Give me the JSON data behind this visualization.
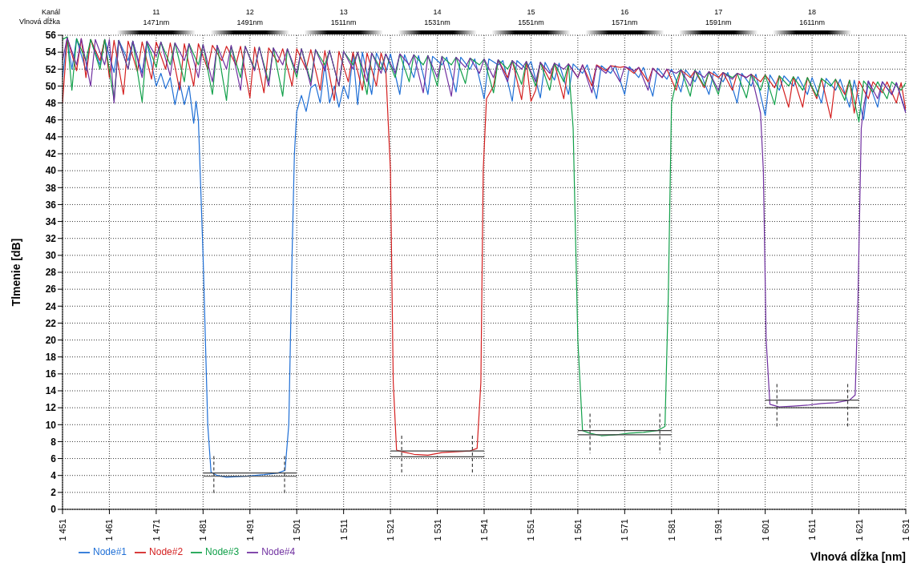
{
  "chart_data": {
    "type": "line",
    "xlabel": "Vlnová dĺžka [nm]",
    "ylabel": "Tlmenie [dB]",
    "annotations": [
      "Kanál",
      "Vlnová dĺžka",
      "11",
      "1471nm",
      "12",
      "1491nm",
      "13",
      "1511nm",
      "14",
      "1531nm",
      "15",
      "1551nm",
      "16",
      "1571nm",
      "17",
      "1591nm",
      "18",
      "1611nm"
    ],
    "xlim": [
      1451,
      1631
    ],
    "xticks": [
      {
        "value": 1451,
        "label": "1 451"
      },
      {
        "value": 1461,
        "label": "1 461"
      },
      {
        "value": 1471,
        "label": "1 471"
      },
      {
        "value": 1481,
        "label": "1 481"
      },
      {
        "value": 1491,
        "label": "1 491"
      },
      {
        "value": 1501,
        "label": "1 501"
      },
      {
        "value": 1511,
        "label": "1 511"
      },
      {
        "value": 1521,
        "label": "1 521"
      },
      {
        "value": 1531,
        "label": "1 531"
      },
      {
        "value": 1541,
        "label": "1 541"
      },
      {
        "value": 1551,
        "label": "1 551"
      },
      {
        "value": 1561,
        "label": "1 561"
      },
      {
        "value": 1571,
        "label": "1 571"
      },
      {
        "value": 1581,
        "label": "1 581"
      },
      {
        "value": 1591,
        "label": "1 591"
      },
      {
        "value": 1601,
        "label": "1 601"
      },
      {
        "value": 1611,
        "label": "1 611"
      },
      {
        "value": 1621,
        "label": "1 621"
      },
      {
        "value": 1631,
        "label": "1 631"
      }
    ],
    "ylim": [
      0,
      56
    ],
    "yticks": [
      0,
      2,
      4,
      6,
      8,
      10,
      12,
      14,
      16,
      18,
      20,
      22,
      24,
      26,
      28,
      30,
      32,
      34,
      36,
      38,
      40,
      42,
      44,
      46,
      48,
      50,
      52,
      54,
      56
    ],
    "grid": true,
    "legend": "bottom left",
    "marker": "none",
    "line_style": "solid",
    "series": [
      {
        "name": "Node#1",
        "color": "#1f6fd6",
        "x": [
          1451,
          1452,
          1453,
          1454,
          1456,
          1457,
          1459,
          1460,
          1462,
          1463,
          1465,
          1466,
          1468,
          1469,
          1471,
          1472,
          1473,
          1474,
          1475,
          1476,
          1477,
          1478,
          1479,
          1479.5,
          1480,
          1481,
          1482,
          1482.7,
          1484,
          1486,
          1490,
          1494,
          1497,
          1498.5,
          1499.3,
          1500,
          1500.5,
          1501,
          1502,
          1503,
          1504,
          1505,
          1506,
          1507,
          1508,
          1509,
          1510,
          1511,
          1512,
          1513,
          1514,
          1515,
          1517,
          1518,
          1520,
          1521,
          1523,
          1524,
          1526,
          1527,
          1529,
          1530,
          1532,
          1533,
          1535,
          1536,
          1538,
          1539,
          1541,
          1542,
          1544,
          1545,
          1547,
          1548,
          1550,
          1551,
          1553,
          1554,
          1556,
          1557,
          1559,
          1560,
          1562,
          1563,
          1565,
          1566,
          1568,
          1569,
          1571,
          1572,
          1574,
          1575,
          1577,
          1578,
          1580,
          1581,
          1583,
          1584,
          1586,
          1587,
          1589,
          1590,
          1592,
          1593,
          1595,
          1596,
          1598,
          1599,
          1601,
          1602,
          1604,
          1605,
          1607,
          1608,
          1610,
          1611,
          1613,
          1614,
          1616,
          1617,
          1619,
          1620,
          1622,
          1623,
          1625,
          1626,
          1628,
          1629,
          1631
        ],
        "values": [
          51,
          55.7,
          52,
          55.6,
          51.8,
          55.5,
          52.5,
          55.5,
          51.6,
          55.4,
          53,
          55.3,
          51.5,
          55.2,
          50,
          51.5,
          49.7,
          51,
          47.8,
          50.5,
          47.8,
          50,
          45.6,
          48.2,
          46,
          30,
          10,
          4.4,
          4,
          3.8,
          3.9,
          4.1,
          4.3,
          4.6,
          10,
          30,
          42,
          47,
          48.9,
          47,
          49.8,
          50.2,
          48,
          52.6,
          48,
          50,
          47.5,
          50,
          48.5,
          53.8,
          47.8,
          54,
          49,
          53.9,
          51.5,
          53.8,
          49,
          53.7,
          51,
          53.6,
          49,
          53.5,
          52.5,
          53.4,
          49.3,
          53.4,
          52,
          53.2,
          48.5,
          53.2,
          52.5,
          53,
          48.2,
          53,
          52,
          52.9,
          48.6,
          52.8,
          50.7,
          52.7,
          49,
          52.6,
          51.5,
          52.5,
          48.5,
          52.4,
          51.5,
          52.4,
          49,
          52.3,
          51,
          52.2,
          48.8,
          52.1,
          50.8,
          52,
          49.3,
          51.9,
          50.5,
          51.8,
          49,
          51.7,
          50.5,
          51.6,
          48,
          51.5,
          50,
          51.4,
          46.5,
          51.3,
          49.5,
          51.2,
          50,
          51.1,
          49,
          51,
          48,
          50.9,
          49.5,
          50.8,
          47.5,
          50.7,
          46,
          50.6,
          47.5,
          50.5,
          49,
          50.4,
          47
        ]
      },
      {
        "name": "Node#2",
        "color": "#d42020",
        "x": [
          1451,
          1452,
          1454,
          1455,
          1456,
          1457,
          1459,
          1460,
          1461,
          1462,
          1464,
          1465,
          1467,
          1468,
          1470,
          1471,
          1473,
          1474,
          1476,
          1477,
          1479,
          1480,
          1482,
          1483,
          1485,
          1486,
          1488,
          1489,
          1491,
          1492,
          1494,
          1495,
          1497,
          1498,
          1500,
          1501,
          1503,
          1504,
          1506,
          1507,
          1509,
          1510,
          1512,
          1513,
          1515,
          1516,
          1518,
          1519,
          1520,
          1521,
          1521.6,
          1522.3,
          1523.5,
          1526,
          1529,
          1532,
          1535,
          1538,
          1539.5,
          1540.3,
          1540.8,
          1541.5,
          1543,
          1544,
          1546,
          1547,
          1549,
          1550,
          1551,
          1552,
          1553,
          1555,
          1556,
          1558,
          1559,
          1561,
          1562,
          1564,
          1565,
          1567,
          1568,
          1570,
          1571,
          1573,
          1574,
          1576,
          1577,
          1579,
          1580,
          1582,
          1583,
          1585,
          1586,
          1588,
          1589,
          1591,
          1592,
          1594,
          1595,
          1597,
          1598,
          1600,
          1601,
          1603,
          1604,
          1606,
          1607,
          1609,
          1610,
          1612,
          1613,
          1615,
          1616,
          1618,
          1619,
          1620,
          1621,
          1623,
          1624,
          1626,
          1627,
          1629,
          1630,
          1631
        ],
        "values": [
          48,
          55.7,
          51.8,
          55.6,
          51,
          55.5,
          53,
          55.5,
          51,
          55.4,
          49,
          55.3,
          51.7,
          55.2,
          50.8,
          55.2,
          52,
          55.1,
          49.5,
          55,
          50,
          55,
          52,
          54.8,
          53,
          54.7,
          52.5,
          54.7,
          48.6,
          54.6,
          49.2,
          54.5,
          52.8,
          54.4,
          50,
          54.4,
          52,
          54.3,
          49.5,
          54.2,
          48.3,
          54.1,
          50.5,
          54,
          49.5,
          53.9,
          50,
          53.9,
          52,
          40,
          15,
          7,
          6.8,
          6.5,
          6.4,
          6.7,
          6.8,
          6.9,
          7.2,
          15,
          40,
          48.5,
          50,
          53.1,
          51,
          53,
          48.4,
          52.9,
          48.2,
          49.5,
          52.8,
          50.7,
          52.7,
          48.5,
          52.6,
          51,
          52.5,
          50,
          52.5,
          51.8,
          52.4,
          52.2,
          52.3,
          51.5,
          52.2,
          50.5,
          52.1,
          51,
          52,
          49.5,
          51.9,
          51,
          51.8,
          49.8,
          51.7,
          51,
          51.6,
          49.5,
          51.5,
          51,
          51.4,
          50.5,
          51.3,
          49.8,
          51.2,
          47.5,
          51.1,
          47.5,
          51,
          48.5,
          50.9,
          46.2,
          50.8,
          49,
          50.7,
          46.8,
          50.6,
          48.5,
          50.5,
          49.2,
          50.5,
          48,
          50.4,
          47.2
        ]
      },
      {
        "name": "Node#3",
        "color": "#12a04a",
        "x": [
          1451,
          1452,
          1453,
          1454,
          1456,
          1457,
          1459,
          1460,
          1462,
          1463,
          1465,
          1466,
          1468,
          1469,
          1471,
          1472,
          1474,
          1475,
          1477,
          1478,
          1480,
          1481,
          1483,
          1484,
          1486,
          1487,
          1489,
          1490,
          1492,
          1493,
          1495,
          1496,
          1498,
          1499,
          1501,
          1502,
          1504,
          1505,
          1507,
          1508,
          1510,
          1511,
          1513,
          1514,
          1516,
          1517,
          1519,
          1520,
          1522,
          1523,
          1525,
          1526,
          1528,
          1529,
          1531,
          1532,
          1534,
          1535,
          1537,
          1538,
          1540,
          1541,
          1543,
          1544,
          1546,
          1547,
          1549,
          1550,
          1552,
          1553,
          1555,
          1556,
          1558,
          1559,
          1560,
          1561,
          1562,
          1563.5,
          1566,
          1569,
          1572,
          1575,
          1578,
          1579.6,
          1580.3,
          1581,
          1582,
          1583,
          1585,
          1586,
          1588,
          1589,
          1591,
          1592,
          1594,
          1595,
          1597,
          1598,
          1600,
          1601,
          1603,
          1604,
          1606,
          1607,
          1609,
          1610,
          1612,
          1613,
          1615,
          1616,
          1618,
          1619,
          1621,
          1622,
          1624,
          1625,
          1627,
          1628,
          1630,
          1631
        ],
        "values": [
          55.5,
          55.8,
          49.5,
          55.6,
          53,
          55.5,
          52,
          55.5,
          48.3,
          55.4,
          52,
          55.3,
          48.1,
          55.2,
          52.2,
          55.2,
          52.5,
          55.1,
          50.5,
          55,
          52.5,
          54.9,
          49,
          54.8,
          48.3,
          54.7,
          51,
          54.7,
          52,
          54.6,
          50.5,
          54.5,
          48.8,
          54.4,
          51,
          54.4,
          50.5,
          54.3,
          52.5,
          54.2,
          50,
          54.1,
          52.5,
          54,
          49,
          53.9,
          52,
          53.8,
          51,
          53.8,
          50.5,
          53.7,
          52.5,
          53.6,
          50,
          53.5,
          52.5,
          53.4,
          50.3,
          53.3,
          52.5,
          53.2,
          49.2,
          53.1,
          52,
          53,
          50.2,
          52.9,
          50,
          52.8,
          49.5,
          52.7,
          50.5,
          52.6,
          45,
          20,
          9.3,
          9,
          8.7,
          8.8,
          9,
          9.1,
          9.3,
          9.8,
          25,
          48,
          50.5,
          52,
          48.8,
          51.9,
          50,
          51.7,
          49,
          51.6,
          51,
          51.5,
          48.6,
          51.4,
          49.5,
          51.3,
          47.8,
          51.2,
          50,
          51.1,
          49.5,
          51,
          48.8,
          50.9,
          50,
          50.8,
          48.3,
          50.7,
          45.8,
          50.6,
          49.3,
          50.5,
          48.5,
          50.5,
          49.5,
          50.4
        ]
      },
      {
        "name": "Node#4",
        "color": "#7030a0",
        "x": [
          1451,
          1452,
          1454,
          1455,
          1457,
          1458,
          1460,
          1461,
          1462,
          1463,
          1465,
          1466,
          1468,
          1469,
          1471,
          1472,
          1474,
          1475,
          1477,
          1478,
          1480,
          1481,
          1483,
          1484,
          1486,
          1487,
          1489,
          1490,
          1492,
          1493,
          1495,
          1496,
          1498,
          1499,
          1501,
          1502,
          1504,
          1505,
          1507,
          1508,
          1510,
          1511,
          1513,
          1514,
          1516,
          1517,
          1519,
          1520,
          1522,
          1523,
          1525,
          1526,
          1528,
          1529,
          1531,
          1532,
          1534,
          1535,
          1537,
          1538,
          1540,
          1541,
          1543,
          1544,
          1546,
          1547,
          1549,
          1550,
          1552,
          1553,
          1555,
          1556,
          1558,
          1559,
          1561,
          1562,
          1564,
          1565,
          1567,
          1568,
          1570,
          1571,
          1573,
          1574,
          1576,
          1577,
          1579,
          1580,
          1582,
          1583,
          1585,
          1586,
          1588,
          1589,
          1591,
          1592,
          1594,
          1595,
          1597,
          1598,
          1600,
          1600.6,
          1601.2,
          1602,
          1604,
          1607,
          1610,
          1613,
          1616,
          1619,
          1620.2,
          1620.8,
          1621.5,
          1622,
          1623,
          1625,
          1626,
          1628,
          1629,
          1631
        ],
        "values": [
          53,
          55.7,
          52.5,
          55.6,
          50,
          55.5,
          52.5,
          55.5,
          48,
          55.4,
          52,
          55.3,
          51,
          55.3,
          53.5,
          55.2,
          51.2,
          55.1,
          53,
          55,
          51,
          54.9,
          50.5,
          54.8,
          52,
          54.8,
          49.5,
          54.7,
          51.8,
          54.6,
          50,
          54.5,
          52.5,
          54.4,
          51.5,
          54.4,
          50,
          54.3,
          51.8,
          54.2,
          50,
          54.1,
          52,
          54,
          50.5,
          53.9,
          51.5,
          53.8,
          51.5,
          53.8,
          52.5,
          53.7,
          49.2,
          53.6,
          51,
          53.5,
          48.8,
          53.4,
          52.2,
          53.3,
          51.5,
          53.2,
          51,
          53.1,
          50.5,
          53,
          52,
          52.9,
          50.5,
          52.8,
          51.5,
          52.7,
          52,
          52.6,
          51,
          52.5,
          49.2,
          52.4,
          51.5,
          52.4,
          50.5,
          52.3,
          51.8,
          52.2,
          49.5,
          52.1,
          51,
          52,
          51.5,
          51.9,
          50,
          51.8,
          51,
          51.7,
          49.5,
          51.6,
          50.8,
          51.5,
          51,
          51.4,
          46.8,
          40,
          20,
          12.4,
          12.1,
          12.2,
          12.3,
          12.5,
          12.6,
          12.9,
          13.5,
          25,
          45,
          47.5,
          50.6,
          48.5,
          50.5,
          49,
          50.4,
          46.8
        ]
      },
      {
        "color": "#404040",
        "x": [
          1481,
          1501,
          1511,
          1521,
          1541,
          1551,
          1561,
          1581,
          1591,
          1601,
          1621
        ],
        "values": [
          4.3,
          4.3,
          null,
          6.9,
          6.9,
          null,
          9.3,
          9.3,
          null,
          12.9,
          12.9
        ]
      },
      {
        "color": "#404040",
        "x": [
          1481,
          1501,
          1511,
          1521,
          1541,
          1551,
          1561,
          1581,
          1591,
          1601,
          1621
        ],
        "values": [
          3.9,
          3.9,
          null,
          6.2,
          6.2,
          null,
          8.8,
          8.8,
          null,
          12,
          12
        ]
      },
      {
        "color": "#404040",
        "line_style": "dashed",
        "x": [
          1483.3,
          1483.3,
          1490,
          1498.4,
          1498.4,
          1510,
          1523.4,
          1523.4,
          1530,
          1538.5,
          1538.5,
          1550,
          1563.6,
          1563.6,
          1570,
          1578.5,
          1578.5,
          1590,
          1603.5,
          1603.5,
          1610,
          1618.6,
          1618.6
        ],
        "values": [
          6.3,
          1.7,
          null,
          6.3,
          1.7,
          null,
          8.7,
          4.3,
          null,
          8.7,
          4.3,
          null,
          11.3,
          6.6,
          null,
          11.3,
          6.6,
          null,
          14.8,
          9.8,
          null,
          14.8,
          9.8
        ]
      }
    ]
  }
}
